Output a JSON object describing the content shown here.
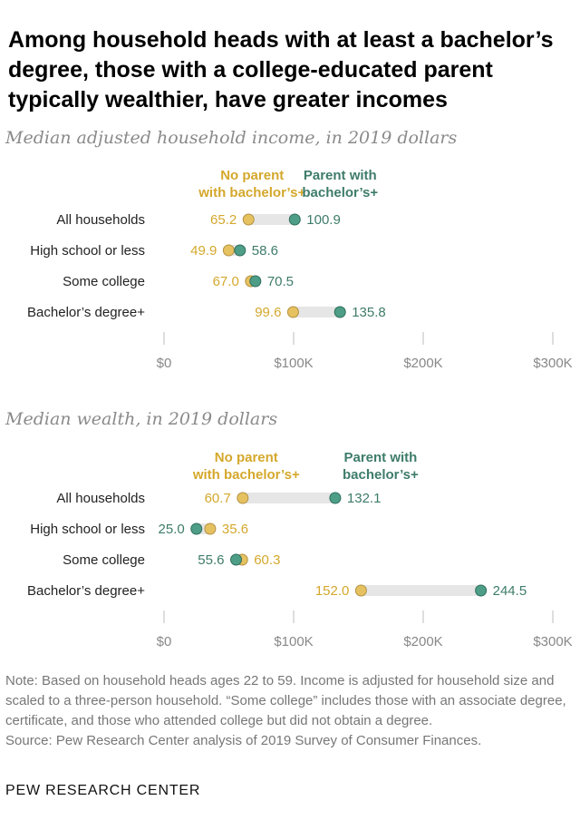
{
  "title": "Among household heads with at least a bachelor’s degree, those with a college-educated parent typically wealthier, have greater incomes",
  "colors": {
    "no_parent": "#e6c160",
    "no_parent_text": "#d4a82c",
    "parent": "#4e9e87",
    "parent_text": "#3e7c6a",
    "connector": "#e6e6e6",
    "axis_tick": "#bcbcbc"
  },
  "chart_data": [
    {
      "type": "dot",
      "subtitle": "Median adjusted household income, in 2019 dollars",
      "legend": {
        "no_parent": [
          "No parent",
          "with bachelor’s+"
        ],
        "parent": [
          "Parent with",
          "bachelor’s+"
        ]
      },
      "categories": [
        "All households",
        "High school or less",
        "Some college",
        "Bachelor’s degree+"
      ],
      "series": [
        {
          "name": "No parent with bachelor’s+",
          "values": [
            65.2,
            49.9,
            67.0,
            99.6
          ],
          "labels": [
            "65.2",
            "49.9",
            "67.0",
            "99.6"
          ]
        },
        {
          "name": "Parent with bachelor’s+",
          "values": [
            100.9,
            58.6,
            70.5,
            135.8
          ],
          "labels": [
            "100.9",
            "58.6",
            "70.5",
            "135.8"
          ]
        }
      ],
      "xlim": [
        0,
        300
      ],
      "xticks": [
        0,
        100,
        200,
        300
      ],
      "xtick_labels": [
        "$0",
        "$100K",
        "$200K",
        "$300K"
      ]
    },
    {
      "type": "dot",
      "subtitle": "Median wealth, in 2019 dollars",
      "legend": {
        "no_parent": [
          "No parent",
          "with bachelor’s+"
        ],
        "parent": [
          "Parent with",
          "bachelor’s+"
        ]
      },
      "categories": [
        "All households",
        "High school or less",
        "Some college",
        "Bachelor’s degree+"
      ],
      "series": [
        {
          "name": "No parent with bachelor’s+",
          "values": [
            60.7,
            35.6,
            60.3,
            152.0
          ],
          "labels": [
            "60.7",
            "35.6",
            "60.3",
            "152.0"
          ]
        },
        {
          "name": "Parent with bachelor’s+",
          "values": [
            132.1,
            25.0,
            55.6,
            244.5
          ],
          "labels": [
            "132.1",
            "25.0",
            "55.6",
            "244.5"
          ]
        }
      ],
      "xlim": [
        0,
        300
      ],
      "xticks": [
        0,
        100,
        200,
        300
      ],
      "xtick_labels": [
        "$0",
        "$100K",
        "$200K",
        "$300K"
      ]
    }
  ],
  "notes": {
    "note": "Note: Based on household heads ages 22 to 59. Income is adjusted for household size and scaled to a three-person household. “Some college” includes those with an associate degree, certificate, and those who attended college but did not obtain a degree.",
    "source": "Source: Pew Research Center analysis of 2019 Survey of Consumer Finances."
  },
  "logo": "PEW RESEARCH CENTER"
}
